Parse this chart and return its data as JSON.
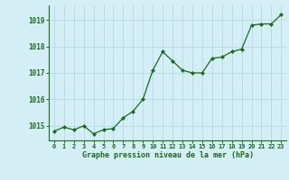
{
  "x": [
    0,
    1,
    2,
    3,
    4,
    5,
    6,
    7,
    8,
    9,
    10,
    11,
    12,
    13,
    14,
    15,
    16,
    17,
    18,
    19,
    20,
    21,
    22,
    23
  ],
  "y": [
    1014.8,
    1014.95,
    1014.85,
    1015.0,
    1014.7,
    1014.85,
    1014.9,
    1015.3,
    1015.55,
    1016.0,
    1017.1,
    1017.8,
    1017.45,
    1017.1,
    1017.0,
    1017.0,
    1017.55,
    1017.6,
    1017.8,
    1017.9,
    1018.8,
    1018.85,
    1018.85,
    1019.2
  ],
  "line_color": "#1a6b1a",
  "marker_color": "#1a6b1a",
  "bg_color": "#d4eef5",
  "grid_color": "#b8dde8",
  "xlabel": "Graphe pression niveau de la mer (hPa)",
  "xlabel_color": "#1a6b1a",
  "tick_color": "#1a6b1a",
  "yticks": [
    1015,
    1016,
    1017,
    1018,
    1019
  ],
  "ylim": [
    1014.45,
    1019.55
  ],
  "xlim": [
    -0.5,
    23.5
  ],
  "xtick_labels": [
    "0",
    "1",
    "2",
    "3",
    "4",
    "5",
    "6",
    "7",
    "8",
    "9",
    "10",
    "11",
    "12",
    "13",
    "14",
    "15",
    "16",
    "17",
    "18",
    "19",
    "20",
    "21",
    "22",
    "23"
  ]
}
